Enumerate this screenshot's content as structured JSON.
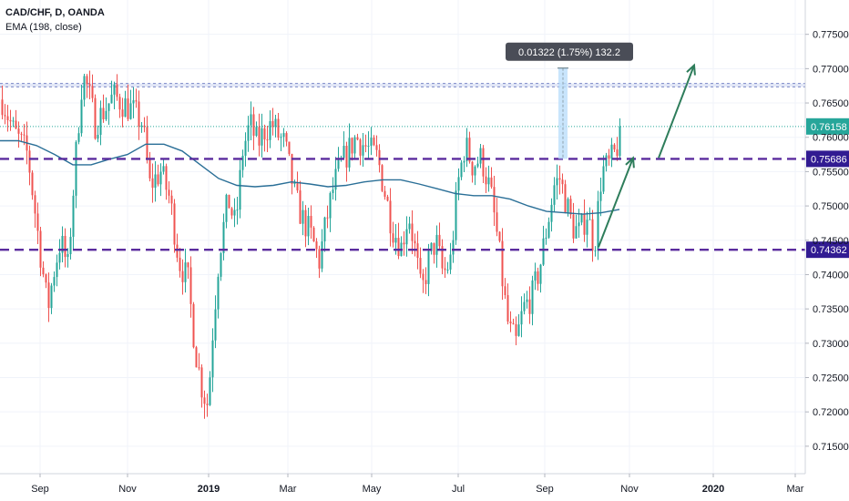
{
  "header": {
    "symbol": "CAD/CHF, D, OANDA",
    "indicator": "EMA (198, close)"
  },
  "chart_data": {
    "type": "candlestick",
    "ylim": [
      0.711,
      0.78
    ],
    "y_ticks": [
      "0.71500",
      "0.72000",
      "0.72500",
      "0.73000",
      "0.73500",
      "0.74000",
      "0.74500",
      "0.75000",
      "0.75500",
      "0.76000",
      "0.76500",
      "0.77000",
      "0.77500"
    ],
    "x_ticks": [
      "Sep",
      "Nov",
      "2019",
      "Mar",
      "May",
      "Jul",
      "Sep",
      "Nov",
      "2020",
      "Mar"
    ],
    "levels": [
      {
        "value": 0.75686,
        "label": "0.75686",
        "style": "dashed",
        "color": "#5b2c9e"
      },
      {
        "value": 0.74362,
        "label": "0.74362",
        "style": "dashed",
        "color": "#5b2c9e"
      }
    ],
    "current_price": {
      "value": 0.76158,
      "label": "0.76158",
      "color": "#26a69a"
    },
    "measure": {
      "label": "0.01322 (1.75%) 132.2",
      "from": 0.75686,
      "to": 0.77008
    },
    "resistance_zone": [
      0.76735,
      0.76785
    ],
    "colors": {
      "up": "#26a69a",
      "down": "#ef5350",
      "ema": "#2a6f97",
      "projection": "#2e7d5b"
    }
  }
}
